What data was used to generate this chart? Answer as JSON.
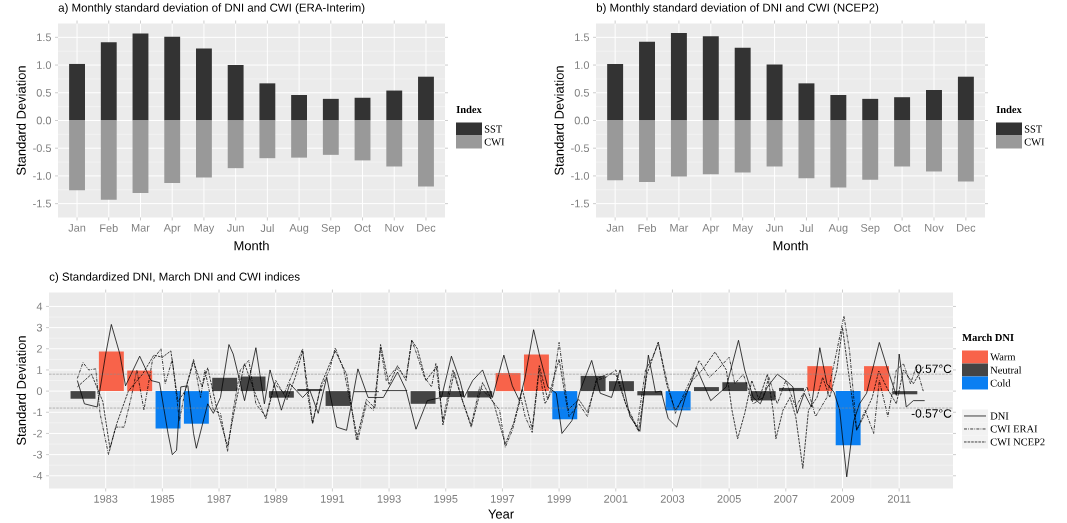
{
  "chart_data": [
    {
      "type": "bar",
      "title": "a) Monthly standard deviation of DNI and CWI (ERA-Interim)",
      "xlabel": "Month",
      "ylabel": "Standard Deviation",
      "legend_title": "Index",
      "legend": "right",
      "grid": true,
      "stacked": true,
      "categories": [
        "Jan",
        "Feb",
        "Mar",
        "Apr",
        "May",
        "Jun",
        "Jul",
        "Aug",
        "Sep",
        "Oct",
        "Nov",
        "Dec"
      ],
      "ylim": [
        -1.75,
        1.75
      ],
      "yticks": [
        {
          "value": -1.5,
          "label": "-1.5"
        },
        {
          "value": -1.0,
          "label": "-1.0"
        },
        {
          "value": -0.5,
          "label": "-0.5"
        },
        {
          "value": 0.0,
          "label": "0.0"
        },
        {
          "value": 0.5,
          "label": "0.5"
        },
        {
          "value": 1.0,
          "label": "1.0"
        },
        {
          "value": 1.5,
          "label": "1.5"
        }
      ],
      "series": [
        {
          "name": "SST",
          "color": "#333333",
          "values": [
            1.02,
            1.41,
            1.57,
            1.51,
            1.3,
            1.0,
            0.67,
            0.46,
            0.39,
            0.41,
            0.54,
            0.79
          ]
        },
        {
          "name": "CWI",
          "color": "#999999",
          "values": [
            -1.26,
            -1.43,
            -1.31,
            -1.13,
            -1.03,
            -0.86,
            -0.68,
            -0.67,
            -0.62,
            -0.72,
            -0.83,
            -1.19
          ]
        }
      ]
    },
    {
      "type": "bar",
      "title": "b) Monthly standard deviation of DNI and CWI (NCEP2)",
      "xlabel": "Month",
      "ylabel": "Standard Deviation",
      "legend_title": "Index",
      "legend": "right",
      "grid": true,
      "stacked": true,
      "categories": [
        "Jan",
        "Feb",
        "Mar",
        "Apr",
        "May",
        "Jun",
        "Jul",
        "Aug",
        "Sep",
        "Oct",
        "Nov",
        "Dec"
      ],
      "ylim": [
        -1.75,
        1.75
      ],
      "yticks": [
        {
          "value": -1.5,
          "label": "-1.5"
        },
        {
          "value": -1.0,
          "label": "-1.0"
        },
        {
          "value": -0.5,
          "label": "-0.5"
        },
        {
          "value": 0.0,
          "label": "0.0"
        },
        {
          "value": 0.5,
          "label": "0.5"
        },
        {
          "value": 1.0,
          "label": "1.0"
        },
        {
          "value": 1.5,
          "label": "1.5"
        }
      ],
      "series": [
        {
          "name": "SST",
          "color": "#333333",
          "values": [
            1.02,
            1.42,
            1.58,
            1.52,
            1.31,
            1.01,
            0.67,
            0.46,
            0.39,
            0.42,
            0.55,
            0.79
          ]
        },
        {
          "name": "CWI",
          "color": "#999999",
          "values": [
            -1.08,
            -1.11,
            -1.01,
            -0.97,
            -0.94,
            -0.83,
            -1.04,
            -1.21,
            -1.07,
            -0.83,
            -0.92,
            -1.1
          ]
        }
      ]
    },
    {
      "type": "line",
      "title": "c) Standardized DNI, March DNI and CWI indices",
      "xlabel": "Year",
      "ylabel": "Standard Deviation",
      "legend_title": "March DNI",
      "legend": "right",
      "grid": true,
      "xlim": [
        1981.0,
        2012.9
      ],
      "ylim": [
        -4.6,
        4.66
      ],
      "xticks": [
        1983,
        1985,
        1987,
        1989,
        1991,
        1993,
        1995,
        1997,
        1999,
        2001,
        2003,
        2005,
        2007,
        2009,
        2011
      ],
      "yticks": [
        -4,
        -3,
        -2,
        -1,
        0,
        1,
        2,
        3,
        4
      ],
      "ref_lines": [
        {
          "axis": "y",
          "value": 0.8,
          "label": "0.57°C",
          "color": "#8c8c8c",
          "line_style": "dashed"
        },
        {
          "axis": "y",
          "value": -0.8,
          "label": "-0.57°C",
          "color": "#8c8c8c",
          "line_style": "dashed"
        }
      ],
      "series": [
        {
          "type": "bar",
          "name": "Warm",
          "color": "#f8634a",
          "x": [
            1983.2,
            1984.2,
            1997.2,
            1998.2,
            2008.2,
            2010.2
          ],
          "values": [
            1.87,
            0.97,
            0.85,
            1.73,
            1.18,
            1.18
          ]
        },
        {
          "type": "bar",
          "name": "Neutral",
          "color": "#444444",
          "x": [
            1982.2,
            1987.2,
            1988.2,
            1989.2,
            1990.2,
            1991.2,
            1992.2,
            1993.2,
            1994.2,
            1995.2,
            1996.2,
            2000.2,
            2001.2,
            2002.2,
            2004.2,
            2005.2,
            2006.2,
            2007.2,
            2011.2
          ],
          "values": [
            -0.36,
            0.63,
            0.69,
            -0.31,
            0.1,
            -0.7,
            -0.05,
            0.05,
            -0.6,
            -0.28,
            -0.3,
            0.72,
            0.47,
            -0.2,
            0.19,
            0.42,
            -0.44,
            0.15,
            -0.15
          ]
        },
        {
          "type": "bar",
          "name": "Cold",
          "color": "#0a7ff2",
          "x": [
            1985.2,
            1986.2,
            1999.2,
            2003.2,
            2009.2
          ],
          "values": [
            -1.77,
            -1.54,
            -1.33,
            -0.91,
            -2.56
          ]
        },
        {
          "type": "line",
          "name": "DNI",
          "color": "#000000",
          "line_style": "solid",
          "x": [
            1982.0,
            1982.25,
            1982.7,
            1983.0,
            1983.2,
            1983.5,
            1983.7,
            1984.2,
            1984.6,
            1984.9,
            1985.2,
            1985.35,
            1985.5,
            1985.65,
            1985.9,
            1986.1,
            1986.2,
            1986.6,
            1986.8,
            1987.05,
            1987.35,
            1987.5,
            1987.9,
            1988.3,
            1988.6,
            1988.8,
            1989.2,
            1989.5,
            1989.95,
            1990.2,
            1990.5,
            1990.8,
            1991.15,
            1991.5,
            1991.9,
            1992.26,
            1992.8,
            1993.3,
            1993.6,
            1993.95,
            1994.35,
            1994.85,
            1995.2,
            1995.5,
            1995.65,
            1995.95,
            1996.3,
            1996.65,
            1997.05,
            1997.35,
            1997.6,
            1997.8,
            1998.1,
            1998.3,
            1998.6,
            1998.9,
            1999.1,
            1999.45,
            1999.75,
            2000.15,
            2000.45,
            2000.85,
            2001.15,
            2001.5,
            2001.85,
            2002.15,
            2002.4,
            2002.6,
            2002.85,
            2003.15,
            2003.45,
            2003.85,
            2004.35,
            2004.9,
            2005.33,
            2005.55,
            2005.85,
            2006.1,
            2006.35,
            2006.7,
            2007.0,
            2007.25,
            2007.4,
            2007.65,
            2007.9,
            2008.2,
            2008.45,
            2008.7,
            2008.9,
            2009.15,
            2009.4,
            2009.6,
            2009.85,
            2010.3,
            2010.6,
            2010.9,
            2011.0,
            2011.25,
            2011.5,
            2011.9
          ],
          "values": [
            0.5,
            -0.6,
            -0.75,
            1.75,
            3.15,
            1.75,
            0.25,
            1.65,
            0.5,
            0.4,
            -2.0,
            -3.0,
            -2.8,
            0.2,
            0.25,
            -2.0,
            -2.7,
            -0.6,
            -1.05,
            -0.3,
            2.2,
            1.75,
            -0.45,
            2.05,
            -0.6,
            1.0,
            -0.9,
            0.35,
            -0.3,
            0.05,
            -1.05,
            0.65,
            -1.7,
            -1.85,
            1.05,
            -0.3,
            -0.3,
            0.9,
            0.05,
            -1.8,
            -0.45,
            -0.3,
            1.65,
            0.5,
            -0.3,
            0.5,
            1.0,
            -0.3,
            1.7,
            0.25,
            -0.45,
            0.65,
            2.9,
            1.75,
            0.2,
            -0.1,
            -2.0,
            -1.4,
            0.05,
            1.45,
            -0.1,
            -0.3,
            1.0,
            -1.2,
            -1.9,
            1.7,
            -0.05,
            0.0,
            -1.3,
            -1.7,
            -0.3,
            1.1,
            -0.45,
            0.2,
            2.4,
            1.0,
            -0.3,
            -0.6,
            0.2,
            0.8,
            0.5,
            0.2,
            -1.05,
            -0.1,
            -0.75,
            2.05,
            0.35,
            -0.05,
            -0.9,
            -4.05,
            -1.4,
            -0.6,
            -0.1,
            2.3,
            1.0,
            -0.2,
            1.75,
            -0.75,
            -0.45,
            -0.45
          ]
        },
        {
          "type": "line",
          "name": "CWI ERAI",
          "color": "#000000",
          "line_style": "dashdot",
          "x": [
            1982.0,
            1982.2,
            1982.4,
            1982.65,
            1982.8,
            1983.1,
            1983.35,
            1983.65,
            1983.9,
            1984.1,
            1984.35,
            1984.65,
            1984.95,
            1985.1,
            1985.35,
            1985.6,
            1985.8,
            1986.1,
            1986.35,
            1986.5,
            1986.8,
            1987.05,
            1987.3,
            1987.5,
            1987.75,
            1988.05,
            1988.3,
            1988.65,
            1988.95,
            1989.3,
            1989.65,
            1989.95,
            1990.1,
            1990.3,
            1990.55,
            1990.9,
            1991.1,
            1991.4,
            1991.9,
            1992.2,
            1992.45,
            1992.7,
            1992.9,
            1993.25,
            1993.6,
            1993.8,
            1993.95,
            1994.25,
            1994.5,
            1994.65,
            1994.9,
            1995.25,
            1995.55,
            1995.9,
            1996.2,
            1996.55,
            1996.9,
            1997.1,
            1997.35,
            1997.65,
            1997.8,
            1998.05,
            1998.3,
            1998.5,
            1998.75,
            1999.0,
            1999.35,
            1999.7,
            2000.0,
            2000.3,
            2000.65,
            2001.0,
            2001.35,
            2001.75,
            2002.05,
            2002.3,
            2002.5,
            2002.8,
            2003.1,
            2003.45,
            2003.8,
            2003.94,
            2004.3,
            2004.65,
            2005.0,
            2005.2,
            2005.5,
            2005.85,
            2006.2,
            2006.4,
            2006.7,
            2007.0,
            2007.35,
            2007.75,
            2008.05,
            2008.45,
            2008.8,
            2009.05,
            2009.25,
            2009.5,
            2009.8,
            2010.1,
            2010.3,
            2010.6,
            2010.9,
            2011.15,
            2011.4,
            2011.6,
            2011.85
          ],
          "values": [
            0.6,
            1.35,
            1.0,
            1.05,
            -1.05,
            -3.0,
            -1.7,
            -1.7,
            -0.3,
            1.0,
            -0.9,
            1.45,
            2.0,
            0.35,
            1.5,
            -1.4,
            0.0,
            1.5,
            -0.3,
            1.0,
            -0.9,
            -1.05,
            -2.85,
            -0.9,
            1.0,
            1.45,
            -0.6,
            -1.2,
            0.35,
            -0.1,
            1.0,
            2.0,
            0.05,
            -1.55,
            0.0,
            1.0,
            2.05,
            1.0,
            -2.3,
            -0.6,
            -0.9,
            2.05,
            0.5,
            1.1,
            0.65,
            2.4,
            1.85,
            0.65,
            0.2,
            1.3,
            -1.4,
            1.0,
            -0.3,
            -1.6,
            0.2,
            -0.3,
            -0.9,
            -2.65,
            -1.85,
            -0.3,
            -1.2,
            -1.95,
            1.0,
            -0.6,
            0.0,
            2.3,
            -1.2,
            -0.6,
            -1.2,
            0.5,
            0.65,
            1.0,
            -0.6,
            -1.7,
            1.0,
            1.6,
            2.3,
            0.5,
            -1.05,
            0.0,
            1.0,
            1.45,
            0.65,
            1.1,
            1.6,
            0.35,
            0.8,
            -0.6,
            -0.3,
            0.65,
            -0.6,
            0.5,
            -0.75,
            0.2,
            -1.2,
            -0.3,
            1.9,
            3.55,
            1.9,
            -1.85,
            -0.9,
            -2.0,
            0.5,
            -1.2,
            1.0,
            1.3,
            0.35,
            1.15,
            0.0
          ]
        },
        {
          "type": "line",
          "name": "CWI NCEP2",
          "color": "#000000",
          "line_style": "dashed",
          "x": [
            1982.0,
            1982.5,
            1982.9,
            1983.15,
            1983.4,
            1983.8,
            1984.3,
            1984.7,
            1985.0,
            1985.3,
            1985.55,
            1985.8,
            1986.1,
            1986.4,
            1986.6,
            1986.9,
            1987.3,
            1987.6,
            1987.9,
            1988.3,
            1988.65,
            1989.0,
            1989.4,
            1989.7,
            1989.95,
            1990.3,
            1990.6,
            1991.1,
            1991.5,
            1991.85,
            1992.2,
            1992.5,
            1992.7,
            1993.0,
            1993.3,
            1993.6,
            1993.8,
            1994.0,
            1994.3,
            1994.7,
            1994.9,
            1995.3,
            1995.6,
            1995.9,
            1996.3,
            1996.7,
            1997.1,
            1997.4,
            1997.7,
            1998.05,
            1998.3,
            1998.6,
            1999.0,
            1999.3,
            1999.7,
            2000.0,
            2000.35,
            2000.7,
            2001.0,
            2001.4,
            2001.8,
            2002.1,
            2002.5,
            2002.8,
            2003.1,
            2003.4,
            2003.7,
            2004.05,
            2004.5,
            2004.9,
            2005.1,
            2005.3,
            2005.55,
            2005.8,
            2006.05,
            2006.35,
            2006.55,
            2006.65,
            2006.9,
            2007.15,
            2007.35,
            2007.6,
            2007.8,
            2008.1,
            2008.3,
            2008.55,
            2008.8,
            2009.0,
            2009.2,
            2009.5,
            2009.75,
            2010.05,
            2010.28,
            2010.55,
            2010.9,
            2011.15,
            2011.5,
            2011.85
          ],
          "values": [
            0.2,
            0.8,
            -0.5,
            -2.7,
            -1.5,
            0.0,
            0.8,
            1.7,
            1.6,
            1.9,
            -0.5,
            0.0,
            1.4,
            0.2,
            1.1,
            -0.7,
            -2.6,
            -0.5,
            1.3,
            -0.2,
            -1.3,
            0.5,
            -0.4,
            0.7,
            1.9,
            -1.5,
            0.3,
            1.9,
            0.8,
            -2.3,
            -0.4,
            -0.8,
            2.2,
            0.3,
            1.2,
            0.5,
            2.4,
            2.0,
            0.5,
            1.2,
            -1.6,
            0.9,
            -0.5,
            -1.7,
            0.4,
            -0.6,
            -2.5,
            -1.5,
            0.1,
            -1.8,
            1.2,
            -0.4,
            1.5,
            -0.9,
            -0.4,
            -1.0,
            0.6,
            0.8,
            0.8,
            -0.8,
            -1.9,
            0.8,
            2.3,
            0.3,
            -0.9,
            -0.3,
            0.5,
            1.0,
            1.85,
            1.0,
            -0.9,
            -2.25,
            -1.05,
            0.5,
            -0.4,
            0.8,
            -0.9,
            -2.25,
            -0.9,
            -0.3,
            -1.2,
            -3.65,
            -0.9,
            -0.3,
            0.65,
            -0.3,
            1.0,
            3.0,
            1.0,
            -1.85,
            -1.2,
            -0.3,
            0.95,
            0.2,
            -0.6,
            1.0,
            0.35,
            1.15
          ]
        }
      ]
    }
  ]
}
